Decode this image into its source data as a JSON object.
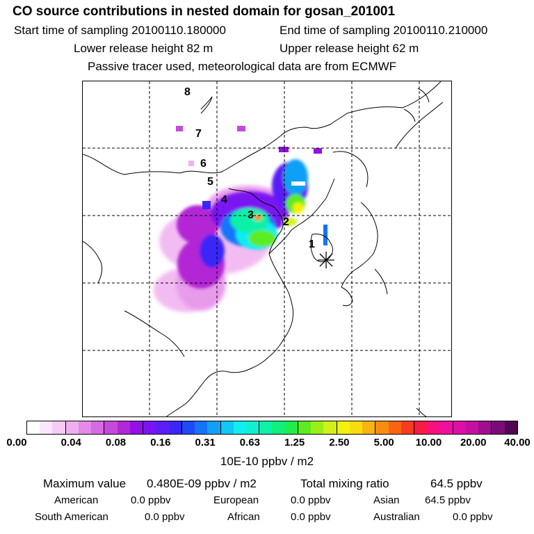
{
  "header": {
    "title": "CO  source contributions in nested domain for gosan_201001",
    "start_label": "Start time of sampling 20100110.180000",
    "end_label": "End time of sampling 20100110.210000",
    "lower_label": "Lower release height   82 m",
    "upper_label": "Upper release height   62 m",
    "info": "Passive tracer used, meteorological data are from ECMWF"
  },
  "map": {
    "day_labels": [
      "1",
      "2",
      "3",
      "4",
      "5",
      "6",
      "7",
      "8"
    ],
    "marker_icon": "receptor-star-icon"
  },
  "colorbar": {
    "colors": [
      "#ffffff",
      "#fbe6fb",
      "#f6ccf6",
      "#f0b0f0",
      "#e58ae8",
      "#d56ae2",
      "#c44adc",
      "#b227d6",
      "#9510e6",
      "#7a14f2",
      "#5a1ef6",
      "#3a26f8",
      "#1f4af8",
      "#1674f8",
      "#10a0f6",
      "#10c8f4",
      "#10eef0",
      "#10f0d0",
      "#10f0a8",
      "#10ee7c",
      "#20ec4c",
      "#5cec20",
      "#9cee1a",
      "#d4f01a",
      "#f4f010",
      "#f8dc10",
      "#f8b410",
      "#f88c10",
      "#f86410",
      "#f83c20",
      "#f81c44",
      "#f8107c",
      "#f010a0",
      "#dc10a8",
      "#c410a0",
      "#a00e90",
      "#7a0c7a",
      "#500850"
    ],
    "tick_labels": [
      "0.00",
      "0.04",
      "0.08",
      "0.16",
      "0.31",
      "0.63",
      "1.25",
      "2.50",
      "5.00",
      "10.00",
      "20.00",
      "40.00"
    ],
    "units": "10E-10 ppbv / m2"
  },
  "stats": {
    "max_label": "Maximum value",
    "max_value": "0.480E-09 ppbv / m2",
    "total_label": "Total mixing ratio",
    "total_value": "64.5 ppbv",
    "regions": [
      {
        "name": "American",
        "value": "0.0 ppbv"
      },
      {
        "name": "European",
        "value": "0.0 ppbv"
      },
      {
        "name": "Asian",
        "value": "64.5 ppbv"
      },
      {
        "name": "South American",
        "value": "0.0 ppbv"
      },
      {
        "name": "African",
        "value": "0.0 ppbv"
      },
      {
        "name": "Australian",
        "value": "0.0 ppbv"
      }
    ]
  }
}
